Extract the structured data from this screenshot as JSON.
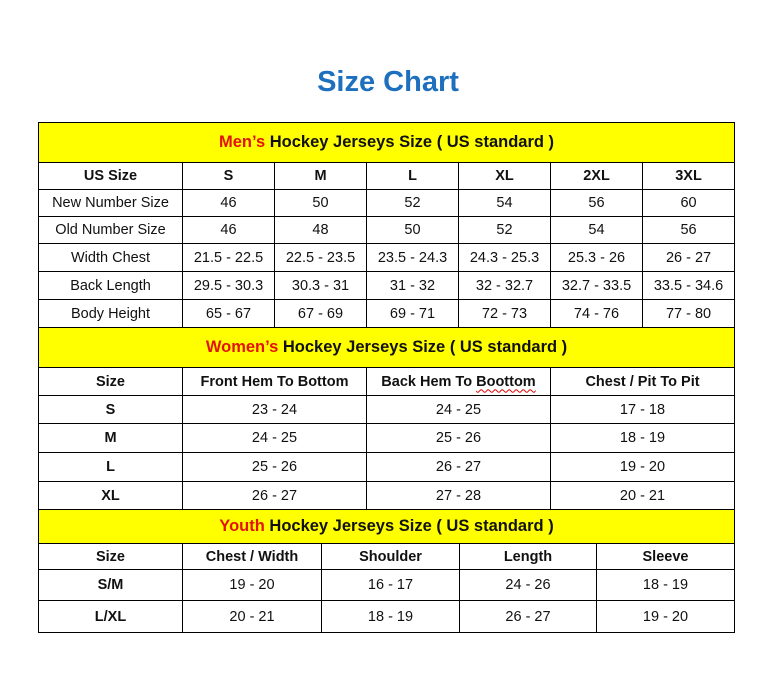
{
  "title": "Size Chart",
  "colors": {
    "title": "#1f6fbf",
    "band": "#ffff00",
    "highlight": "#e3120b"
  },
  "sections": [
    {
      "band_highlight": "Men’s",
      "band_rest": " Hockey Jerseys Size ( US standard )",
      "columns": [
        "US Size",
        "S",
        "M",
        "L",
        "XL",
        "2XL",
        "3XL"
      ],
      "rows": [
        [
          "New Number Size",
          "46",
          "50",
          "52",
          "54",
          "56",
          "60"
        ],
        [
          "Old Number Size",
          "46",
          "48",
          "50",
          "52",
          "54",
          "56"
        ],
        [
          "Width Chest",
          "21.5 - 22.5",
          "22.5 - 23.5",
          "23.5 - 24.3",
          "24.3 - 25.3",
          "25.3 - 26",
          "26 - 27"
        ],
        [
          "Back Length",
          "29.5 - 30.3",
          "30.3 - 31",
          "31 - 32",
          "32 - 32.7",
          "32.7 - 33.5",
          "33.5 - 34.6"
        ],
        [
          "Body Height",
          "65 - 67",
          "67 - 69",
          "69 - 71",
          "72 - 73",
          "74 - 76",
          "77 - 80"
        ]
      ]
    },
    {
      "band_highlight": "Women’s",
      "band_rest": " Hockey Jerseys Size ( US standard )",
      "columns": [
        "Size",
        "Front Hem To Bottom",
        "Back Hem To Boottom",
        "Chest / Pit To Pit"
      ],
      "rows": [
        [
          "S",
          "23 - 24",
          "24 - 25",
          "17 - 18"
        ],
        [
          "M",
          "24 - 25",
          "25 - 26",
          "18 - 19"
        ],
        [
          "L",
          "25 - 26",
          "26 - 27",
          "19 - 20"
        ],
        [
          "XL",
          "26 - 27",
          "27 - 28",
          "20 - 21"
        ]
      ]
    },
    {
      "band_highlight": "Youth",
      "band_rest": " Hockey Jerseys Size ( US standard )",
      "columns": [
        "Size",
        "Chest / Width",
        "Shoulder",
        "Length",
        "Sleeve"
      ],
      "rows": [
        [
          "S/M",
          "19 - 20",
          "16 - 17",
          "24 - 26",
          "18 - 19"
        ],
        [
          "L/XL",
          "20 - 21",
          "18 - 19",
          "26 - 27",
          "19 - 20"
        ]
      ]
    }
  ]
}
